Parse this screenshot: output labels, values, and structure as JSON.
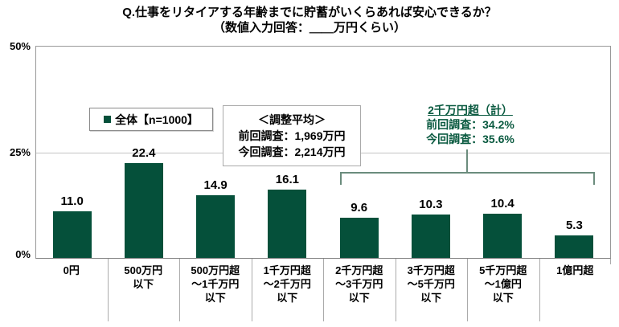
{
  "title": {
    "line1": "Q.仕事をリタイアする年齢までに貯蓄がいくらあれば安心できるか？",
    "line2": "（数値入力回答：＿＿万円くらい）"
  },
  "legend": {
    "label": "全体【n=1000】"
  },
  "adjusted_average": {
    "heading": "＜調整平均＞",
    "previous": "前回調査：1,969万円",
    "current": "今回調査：2,214万円"
  },
  "over_20m_total": {
    "heading": "2千万円超（計）",
    "previous": "前回調査：34.2%",
    "current": "今回調査：35.6%"
  },
  "y_axis": {
    "top": "50%",
    "mid": "25%",
    "bottom": "0%"
  },
  "colors": {
    "bar": "#05503A",
    "accent_text": "#0A5A40",
    "bracket": "#6B8C7D",
    "gridline": "#C3C3C3"
  },
  "chart_data": {
    "type": "bar",
    "title": "Q.仕事をリタイアする年齢までに貯蓄がいくらあれば安心できるか？（数値入力回答：＿＿万円くらい）",
    "series_name": "全体【n=1000】",
    "categories": [
      "0円",
      "500万円\n以下",
      "500万円超\n～1千万円\n以下",
      "1千万円超\n～2千万円\n以下",
      "2千万円超\n～3千万円\n以下",
      "3千万円超\n～5千万円\n以下",
      "5千万円超\n～1億円\n以下",
      "1億円超"
    ],
    "values": [
      11.0,
      22.4,
      14.9,
      16.1,
      9.6,
      10.3,
      10.4,
      5.3
    ],
    "value_labels": [
      "11.0",
      "22.4",
      "14.9",
      "16.1",
      "9.6",
      "10.3",
      "10.4",
      "5.3"
    ],
    "xlabel": "",
    "ylabel": "%",
    "ylim": [
      0,
      50
    ],
    "y_ticks": [
      "0%",
      "25%",
      "50%"
    ],
    "grid": "horizontal line at 25% only",
    "legend_position": "inside top-left",
    "annotations": {
      "adjusted_average": [
        "＜調整平均＞",
        "前回調査：1,969万円",
        "今回調査：2,214万円"
      ],
      "bracket_group": {
        "label": "2千万円超（計）",
        "previous": "前回調査：34.2%",
        "current": "今回調査：35.6%",
        "covers_category_indexes": [
          4,
          5,
          6,
          7
        ]
      }
    }
  }
}
